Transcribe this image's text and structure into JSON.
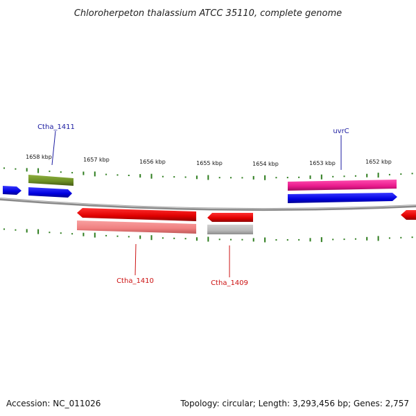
{
  "title": "Chloroherpeton thalassium ATCC 35110, complete genome",
  "footer": {
    "accession": "Accession: NC_011026",
    "stats": "Topology: circular; Length: 3,293,456 bp; Genes: 2,757"
  },
  "ticks": [
    "1658 kbp",
    "1657 kbp",
    "1656 kbp",
    "1655 kbp",
    "1654 kbp",
    "1653 kbp",
    "1652 kbp"
  ],
  "gene_labels": {
    "ctha_1411": "Ctha_1411",
    "uvrc": "uvrC",
    "ctha_1410": "Ctha_1410",
    "ctha_1409": "Ctha_1409"
  },
  "colors": {
    "backbone": "#8a8a8a",
    "tick": "#2e7d1e",
    "forward_gene": "#0a0aee",
    "reverse_gene": "#ee0a0a",
    "ctha_1411_feature": "#6b8e23",
    "uvrc_feature": "#e8198b",
    "reverse_rna": "#f08080",
    "ctha_1409_feature": "#b8b8b8"
  }
}
